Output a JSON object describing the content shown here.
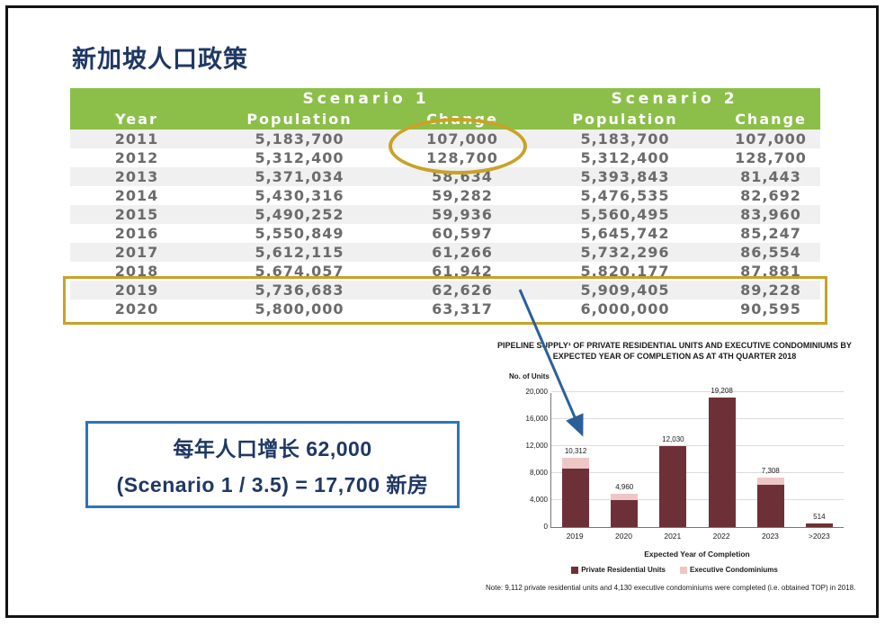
{
  "title": "新加坡人口政策",
  "table": {
    "scenario1_header": "Scenario 1",
    "scenario2_header": "Scenario 2",
    "columns": [
      "Year",
      "Population",
      "Change",
      "Population",
      "Change"
    ],
    "rows": [
      [
        "2011",
        "5,183,700",
        "107,000",
        "5,183,700",
        "107,000"
      ],
      [
        "2012",
        "5,312,400",
        "128,700",
        "5,312,400",
        "128,700"
      ],
      [
        "2013",
        "5,371,034",
        "58,634",
        "5,393,843",
        "81,443"
      ],
      [
        "2014",
        "5,430,316",
        "59,282",
        "5,476,535",
        "82,692"
      ],
      [
        "2015",
        "5,490,252",
        "59,936",
        "5,560,495",
        "83,960"
      ],
      [
        "2016",
        "5,550,849",
        "60,597",
        "5,645,742",
        "85,247"
      ],
      [
        "2017",
        "5,612,115",
        "61,266",
        "5,732,296",
        "86,554"
      ],
      [
        "2018",
        "5,674,057",
        "61,942",
        "5,820,177",
        "87,881"
      ],
      [
        "2019",
        "5,736,683",
        "62,626",
        "5,909,405",
        "89,228"
      ],
      [
        "2020",
        "5,800,000",
        "63,317",
        "6,000,000",
        "90,595"
      ]
    ]
  },
  "callout": {
    "line1": "每年人口增长 62,000",
    "line2": "(Scenario 1 / 3.5) = 17,700 新房"
  },
  "chart_data": {
    "type": "bar",
    "title": "PIPELINE SUPPLY¹ OF PRIVATE RESIDENTIAL UNITS AND EXECUTIVE CONDOMINIUMS BY EXPECTED YEAR OF COMPLETION AS AT 4TH QUARTER 2018",
    "ylabel": "No. of Units",
    "xlabel": "Expected Year of Completion",
    "x": [
      "2019",
      "2020",
      "2021",
      "2022",
      "2023",
      ">2023"
    ],
    "series": [
      {
        "name": "Private Residential Units",
        "color": "#6E3037",
        "values": [
          8700,
          4000,
          12030,
          19208,
          6300,
          514
        ]
      },
      {
        "name": "Executive Condominiums",
        "color": "#EFC6C6",
        "values": [
          1612,
          960,
          0,
          0,
          1008,
          0
        ]
      }
    ],
    "totals": [
      10312,
      4960,
      12030,
      19208,
      7308,
      514
    ],
    "total_labels": [
      "10,312",
      "4,960",
      "12,030",
      "19,208",
      "7,308",
      "514"
    ],
    "ylim": [
      0,
      20000
    ],
    "yticks": [
      0,
      4000,
      8000,
      12000,
      16000,
      20000
    ],
    "ytick_labels": [
      "0",
      "4,000",
      "8,000",
      "12,000",
      "16,000",
      "20,000"
    ],
    "grid": true,
    "legend_position": "bottom",
    "note": "Note: 9,112 private residential units and 4,130 executive condominiums were completed (i.e. obtained TOP) in 2018."
  },
  "colors": {
    "header_green": "#8CBF4A",
    "highlight_gold": "#C9A227",
    "arrow_blue": "#2A6099",
    "callout_blue": "#2E74B5",
    "title_navy": "#1F3864",
    "bar_maroon": "#6E3037",
    "bar_pink": "#EFC6C6"
  }
}
